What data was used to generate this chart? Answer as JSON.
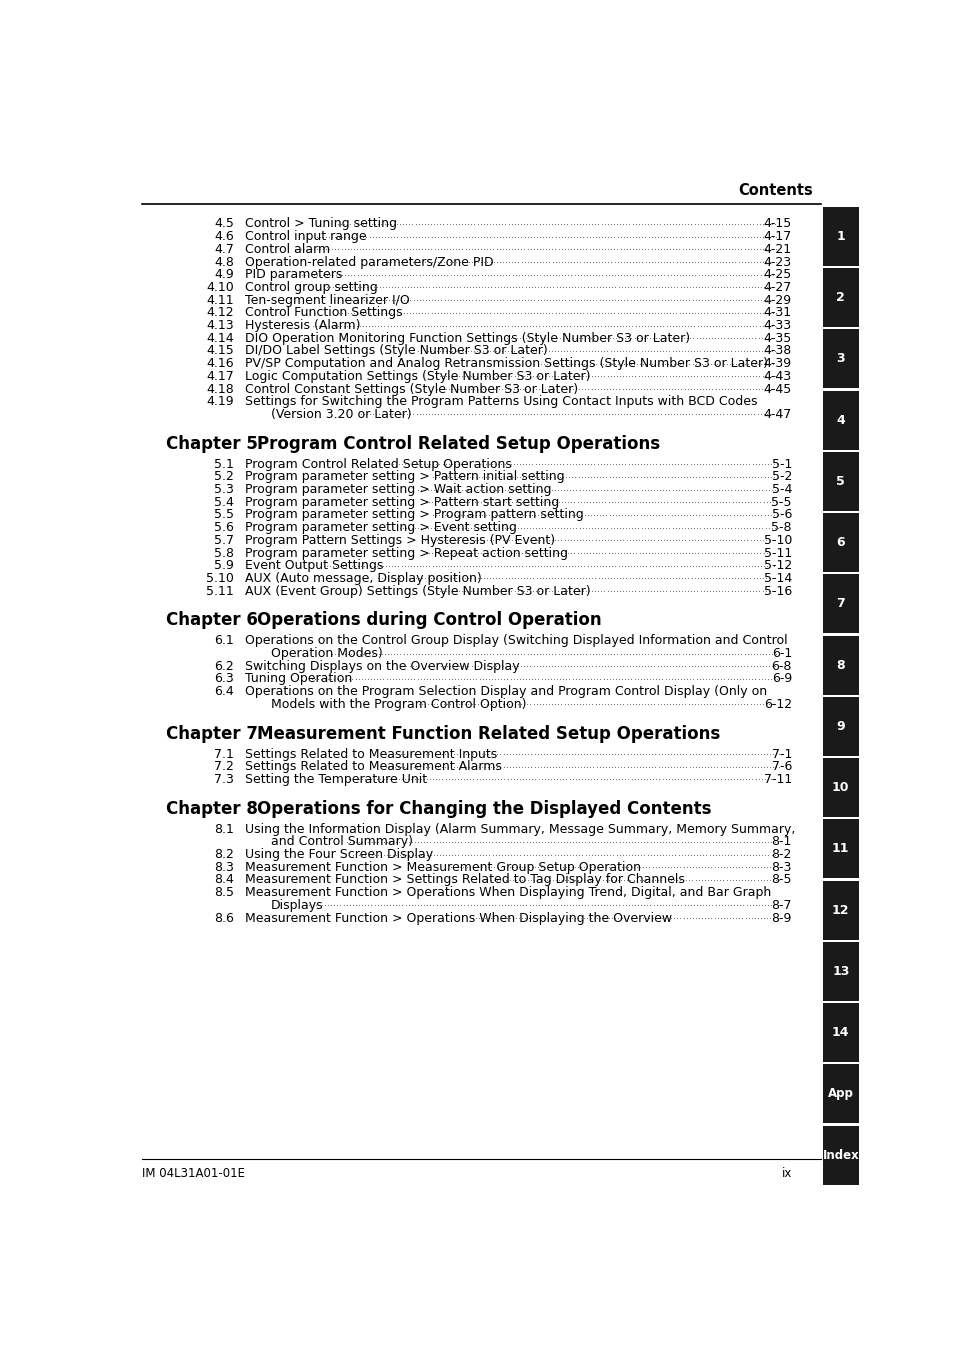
{
  "bg_color": "#ffffff",
  "text_color": "#000000",
  "tab_bg": "#1a1a1a",
  "tab_text": "#ffffff",
  "header_text": "Contents",
  "footer_left": "IM 04L31A01-01E",
  "footer_right": "ix",
  "chapter4_entries": [
    [
      "4.5",
      "Control > Tuning setting",
      "4-15",
      false
    ],
    [
      "4.6",
      "Control input range",
      "4-17",
      false
    ],
    [
      "4.7",
      "Control alarm",
      "4-21",
      false
    ],
    [
      "4.8",
      "Operation-related parameters/Zone PID",
      "4-23",
      false
    ],
    [
      "4.9",
      "PID parameters",
      "4-25",
      false
    ],
    [
      "4.10",
      "Control group setting",
      "4-27",
      false
    ],
    [
      "4.11",
      "Ten-segment linearizer I/O",
      "4-29",
      false
    ],
    [
      "4.12",
      "Control Function Settings",
      "4-31",
      false
    ],
    [
      "4.13",
      "Hysteresis (Alarm)",
      "4-33",
      false
    ],
    [
      "4.14",
      "DIO Operation Monitoring Function Settings (Style Number S3 or Later)",
      "4-35",
      false
    ],
    [
      "4.15",
      "DI/DO Label Settings (Style Number S3 or Later)",
      "4-38",
      false
    ],
    [
      "4.16",
      "PV/SP Computation and Analog Retransmission Settings (Style Number S3 or Later)",
      "4-39",
      true
    ],
    [
      "4.17",
      "Logic Computation Settings (Style Number S3 or Later)",
      "4-43",
      false
    ],
    [
      "4.18",
      "Control Constant Settings (Style Number S3 or Later)",
      "4-45",
      false
    ],
    [
      "4.19",
      "Settings for Switching the Program Patterns Using Contact Inputs with BCD Codes|(Version 3.20 or Later)",
      "4-47",
      false
    ]
  ],
  "chapter5_title_num": "Chapter 5",
  "chapter5_title_text": "Program Control Related Setup Operations",
  "chapter5_entries": [
    [
      "5.1",
      "Program Control Related Setup Operations",
      "5-1",
      false
    ],
    [
      "5.2",
      "Program parameter setting > Pattern initial setting",
      "5-2",
      false
    ],
    [
      "5.3",
      "Program parameter setting > Wait action setting",
      "5-4",
      false
    ],
    [
      "5.4",
      "Program parameter setting > Pattern start setting",
      "5-5",
      false
    ],
    [
      "5.5",
      "Program parameter setting > Program pattern setting",
      "5-6",
      false
    ],
    [
      "5.6",
      "Program parameter setting > Event setting",
      "5-8",
      false
    ],
    [
      "5.7",
      "Program Pattern Settings > Hysteresis (PV Event)",
      "5-10",
      false
    ],
    [
      "5.8",
      "Program parameter setting > Repeat action setting",
      "5-11",
      false
    ],
    [
      "5.9",
      "Event Output Settings",
      "5-12",
      false
    ],
    [
      "5.10",
      "AUX (Auto message, Display position)",
      "5-14",
      false
    ],
    [
      "5.11",
      "AUX (Event Group) Settings (Style Number S3 or Later)",
      "5-16",
      false
    ]
  ],
  "chapter6_title_num": "Chapter 6",
  "chapter6_title_text": "Operations during Control Operation",
  "chapter6_entries": [
    [
      "6.1",
      "Operations on the Control Group Display (Switching Displayed Information and Control|Operation Modes)",
      "6-1",
      false
    ],
    [
      "6.2",
      "Switching Displays on the Overview Display",
      "6-8",
      false
    ],
    [
      "6.3",
      "Tuning Operation",
      "6-9",
      false
    ],
    [
      "6.4",
      "Operations on the Program Selection Display and Program Control Display (Only on|Models with the Program Control Option)",
      "6-12",
      false
    ]
  ],
  "chapter7_title_num": "Chapter 7",
  "chapter7_title_text": "Measurement Function Related Setup Operations",
  "chapter7_entries": [
    [
      "7.1",
      "Settings Related to Measurement Inputs",
      "7-1",
      false
    ],
    [
      "7.2",
      "Settings Related to Measurement Alarms",
      "7-6",
      false
    ],
    [
      "7.3",
      "Setting the Temperature Unit",
      "7-11",
      false
    ]
  ],
  "chapter8_title_num": "Chapter 8",
  "chapter8_title_text": "Operations for Changing the Displayed Contents",
  "chapter8_entries": [
    [
      "8.1",
      "Using the Information Display (Alarm Summary, Message Summary, Memory Summary,|and Control Summary)",
      "8-1",
      false
    ],
    [
      "8.2",
      "Using the Four Screen Display",
      "8-2",
      false
    ],
    [
      "8.3",
      "Measurement Function > Measurement Group Setup Operation",
      "8-3",
      false
    ],
    [
      "8.4",
      "Measurement Function > Settings Related to Tag Display for Channels",
      "8-5",
      false
    ],
    [
      "8.5",
      "Measurement Function > Operations When Displaying Trend, Digital, and Bar Graph|Displays",
      "8-7",
      false
    ],
    [
      "8.6",
      "Measurement Function > Operations When Displaying the Overview",
      "8-9",
      false
    ]
  ]
}
